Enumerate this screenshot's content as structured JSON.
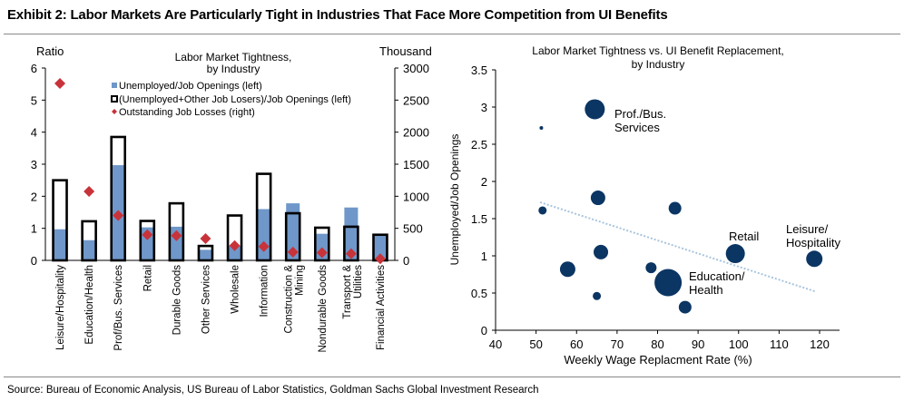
{
  "title": "Exhibit 2: Labor Markets Are Particularly Tight in Industries That Face More Competition from UI Benefits",
  "source": "Source: Bureau of Economic Analysis, US Bureau of Labor Statistics, Goldman Sachs Global Investment Research",
  "colors": {
    "bar_fill": "#6f97c9",
    "bar_outline": "#000000",
    "diamond": "#c8333a",
    "bubble": "#0b3563",
    "trend": "#a9c4dc"
  },
  "chart_data": [
    {
      "type": "bar",
      "title": "Labor Market Tightness, by Industry",
      "ylabel_left": "Ratio",
      "ylabel_right": "Thousand",
      "ylim_left": [
        0,
        6
      ],
      "ylim_right": [
        0,
        3000
      ],
      "yticks_left": [
        "0",
        "1",
        "2",
        "3",
        "4",
        "5",
        "6"
      ],
      "yticks_right": [
        "0",
        "500",
        "1000",
        "1500",
        "2000",
        "2500",
        "3000"
      ],
      "legend_placement": "top-center",
      "categories": [
        "Leisure/Hospitality",
        "Education/Health",
        "Prof/Bus. Services",
        "Retail",
        "Durable Goods",
        "Other Services",
        "Wholesale",
        "Information",
        "Construction & Mining",
        "Nondurable Goods",
        "Transport & Utilities",
        "Financial Activities"
      ],
      "series": [
        {
          "name": "Unemployed/Job Openings (left)",
          "kind": "filled-bar",
          "axis": "left",
          "values": [
            0.97,
            0.63,
            2.97,
            1.03,
            1.05,
            0.33,
            0.45,
            1.6,
            1.78,
            0.83,
            1.65,
            0.77
          ]
        },
        {
          "name": "(Unemployed+Other Job Losers)/Job Openings (left)",
          "kind": "outline-bar",
          "axis": "left",
          "values": [
            2.5,
            1.22,
            3.85,
            1.23,
            1.78,
            0.45,
            1.4,
            2.7,
            1.47,
            1.02,
            1.05,
            0.8
          ]
        },
        {
          "name": "Outstanding Job Losses (right)",
          "kind": "diamond",
          "axis": "right",
          "values": [
            2760,
            1075,
            700,
            400,
            385,
            340,
            230,
            215,
            130,
            120,
            105,
            25
          ]
        }
      ]
    },
    {
      "type": "scatter",
      "title": "Labor Market Tightness vs. UI Benefit Replacement, by Industry",
      "xlabel": "Weekly Wage Replacment Rate (%)",
      "ylabel": "Unemployed/Job Openings",
      "xlim": [
        40,
        120
      ],
      "ylim": [
        0,
        3.5
      ],
      "xticks": [
        "40",
        "50",
        "60",
        "70",
        "80",
        "90",
        "100",
        "110",
        "120"
      ],
      "yticks": [
        "0",
        "0.5",
        "1",
        "1.5",
        "2",
        "2.5",
        "3",
        "3.5"
      ],
      "points": [
        {
          "x": 64.5,
          "y": 2.97,
          "size": 11,
          "label": "Prof./Bus. Services"
        },
        {
          "x": 51.3,
          "y": 2.72,
          "size": 2
        },
        {
          "x": 65.3,
          "y": 1.78,
          "size": 8
        },
        {
          "x": 84.3,
          "y": 1.64,
          "size": 7
        },
        {
          "x": 51.6,
          "y": 1.61,
          "size": 4.5
        },
        {
          "x": 66.0,
          "y": 1.05,
          "size": 8
        },
        {
          "x": 57.8,
          "y": 0.82,
          "size": 8.5
        },
        {
          "x": 78.4,
          "y": 0.84,
          "size": 6
        },
        {
          "x": 82.6,
          "y": 0.64,
          "size": 15,
          "label": "Education/ Health"
        },
        {
          "x": 65.0,
          "y": 0.46,
          "size": 4.5
        },
        {
          "x": 86.8,
          "y": 0.31,
          "size": 7
        },
        {
          "x": 99.2,
          "y": 1.03,
          "size": 10.5,
          "label": "Retail"
        },
        {
          "x": 118.7,
          "y": 0.96,
          "size": 9,
          "label": "Leisure/ Hospitality"
        }
      ],
      "trendline": {
        "style": "dotted",
        "from": [
          51,
          1.72
        ],
        "to": [
          119,
          0.52
        ]
      }
    }
  ]
}
